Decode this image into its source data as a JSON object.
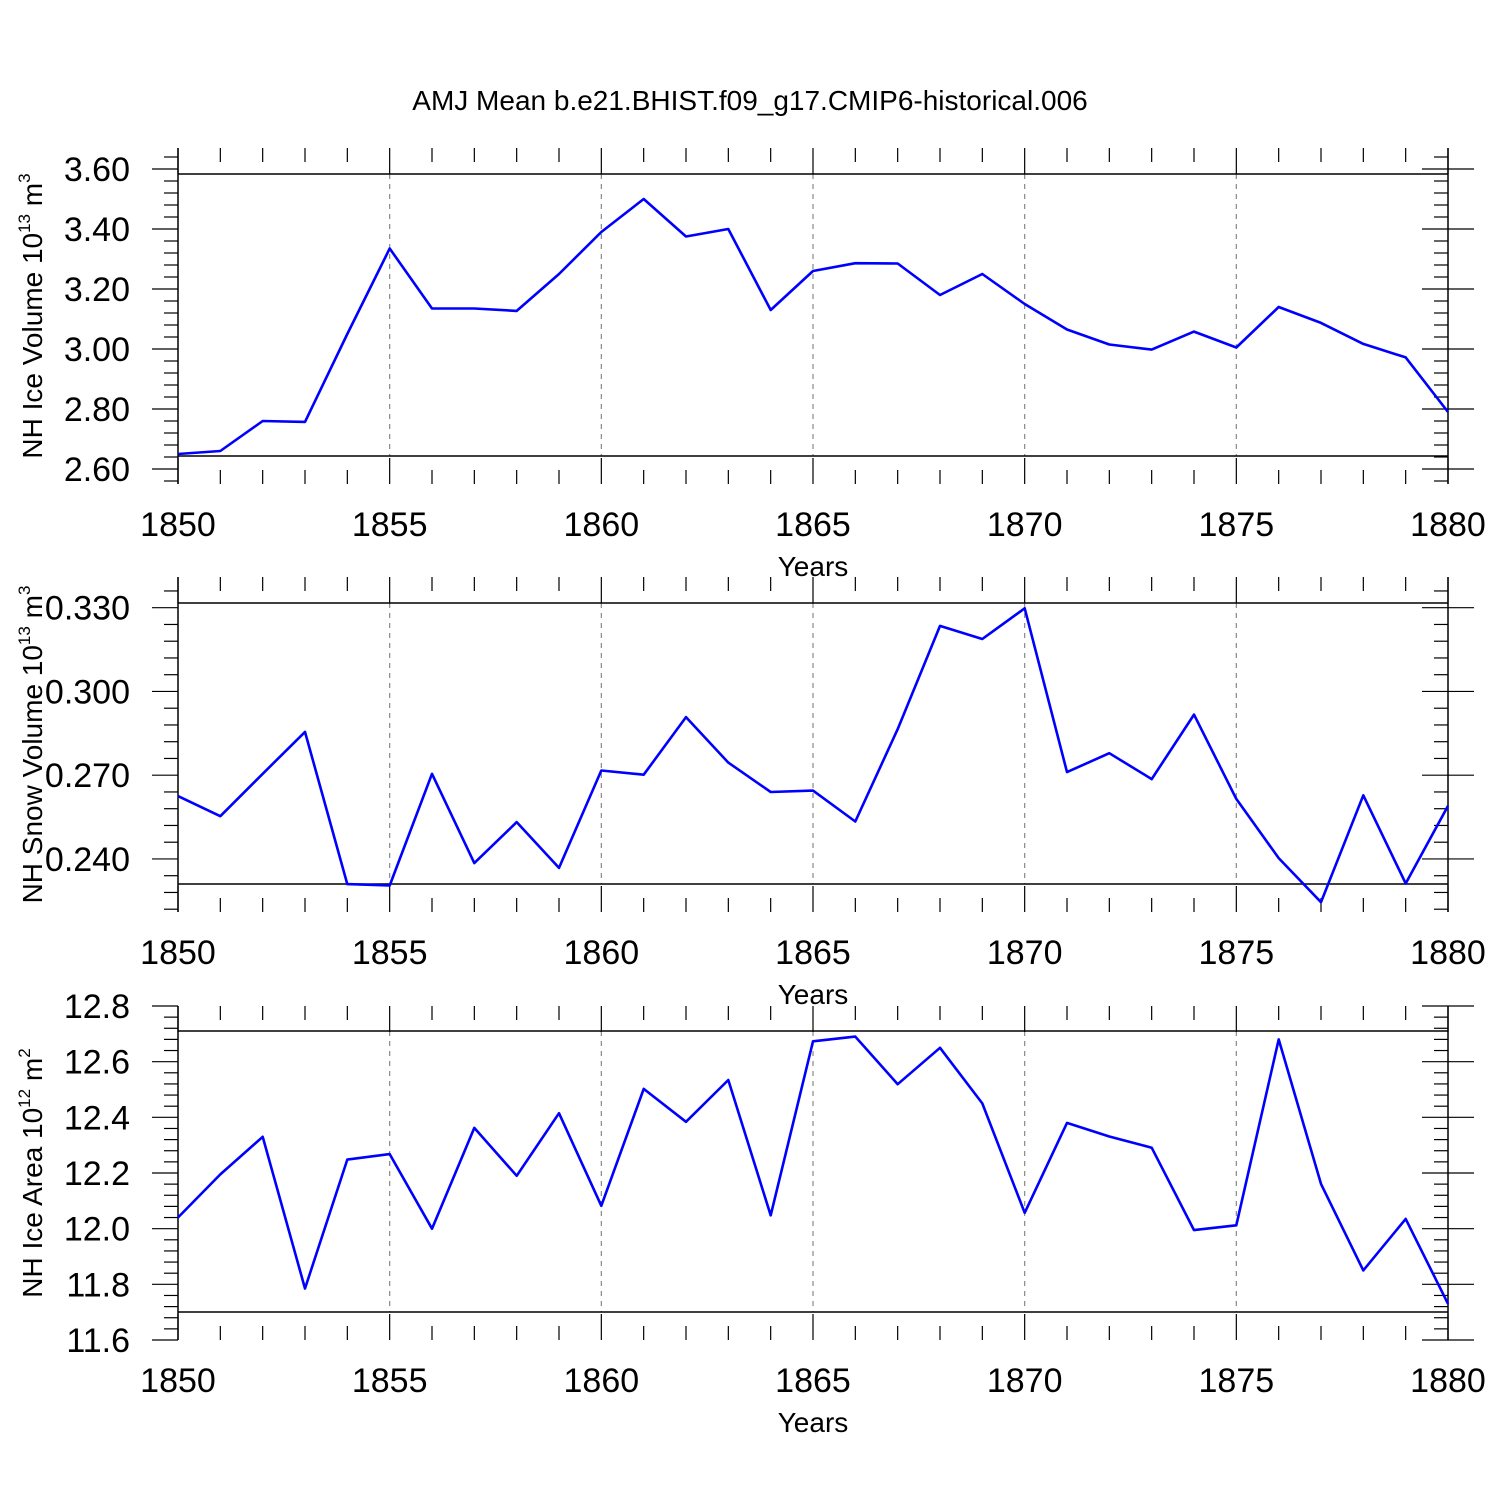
{
  "figure_title": "AMJ Mean b.e21.BHIST.f09_g17.CMIP6-historical.006",
  "colors": {
    "line": "#0000ff",
    "frame": "#000000",
    "grid": "#888888"
  },
  "chart_data": [
    {
      "type": "line",
      "title": "AMJ Mean b.e21.BHIST.f09_g17.CMIP6-historical.006",
      "xlabel": "Years",
      "ylabel": {
        "main": "NH Ice Volume 10",
        "exp": "13",
        "unit": " m",
        "unit_exp": "3"
      },
      "xlim": [
        1850,
        1880
      ],
      "ylim": [
        2.55,
        3.67
      ],
      "xticks": [
        "1850",
        "1855",
        "1860",
        "1865",
        "1870",
        "1875",
        "1880"
      ],
      "yticks": [
        "2.60",
        "2.80",
        "3.00",
        "3.20",
        "3.40",
        "3.60"
      ],
      "series": [
        {
          "name": "NH Ice Volume",
          "x": [
            1850,
            1851,
            1852,
            1853,
            1854,
            1855,
            1856,
            1857,
            1858,
            1859,
            1860,
            1861,
            1862,
            1863,
            1864,
            1865,
            1866,
            1867,
            1868,
            1869,
            1870,
            1871,
            1872,
            1873,
            1874,
            1875,
            1876,
            1877,
            1878,
            1879,
            1880
          ],
          "values": [
            2.65,
            2.66,
            2.76,
            2.757,
            3.05,
            3.335,
            3.135,
            3.135,
            3.127,
            3.25,
            3.39,
            3.5,
            3.375,
            3.4,
            3.13,
            3.26,
            3.286,
            3.285,
            3.18,
            3.25,
            3.15,
            3.065,
            3.015,
            2.998,
            3.058,
            3.005,
            3.14,
            3.087,
            3.017,
            2.972,
            2.79
          ]
        }
      ]
    },
    {
      "type": "line",
      "title": "",
      "xlabel": "Years",
      "ylabel": {
        "main": "NH Snow Volume 10",
        "exp": "13",
        "unit": " m",
        "unit_exp": "3"
      },
      "xlim": [
        1850,
        1880
      ],
      "ylim": [
        0.221,
        0.341
      ],
      "xticks": [
        "1850",
        "1855",
        "1860",
        "1865",
        "1870",
        "1875",
        "1880"
      ],
      "yticks": [
        "0.240",
        "0.270",
        "0.300",
        "0.330"
      ],
      "series": [
        {
          "name": "NH Snow Volume",
          "x": [
            1850,
            1851,
            1852,
            1853,
            1854,
            1855,
            1856,
            1857,
            1858,
            1859,
            1860,
            1861,
            1862,
            1863,
            1864,
            1865,
            1866,
            1867,
            1868,
            1869,
            1870,
            1871,
            1872,
            1873,
            1874,
            1875,
            1876,
            1877,
            1878,
            1879,
            1880
          ],
          "values": [
            0.2625,
            0.2553,
            0.2705,
            0.2855,
            0.231,
            0.2305,
            0.2705,
            0.2385,
            0.2532,
            0.2368,
            0.2717,
            0.2702,
            0.2908,
            0.2745,
            0.264,
            0.2645,
            0.2534,
            0.2865,
            0.3235,
            0.3188,
            0.3298,
            0.2711,
            0.2779,
            0.2686,
            0.2917,
            0.2615,
            0.2403,
            0.2245,
            0.2628,
            0.2312,
            0.259
          ]
        }
      ]
    },
    {
      "type": "line",
      "title": "",
      "xlabel": "Years",
      "ylabel": {
        "main": "NH Ice Area 10",
        "exp": "12",
        "unit": " m",
        "unit_exp": "2"
      },
      "xlim": [
        1850,
        1880
      ],
      "ylim": [
        11.6,
        12.8
      ],
      "xticks": [
        "1850",
        "1855",
        "1860",
        "1865",
        "1870",
        "1875",
        "1880"
      ],
      "yticks": [
        "11.6",
        "11.8",
        "12.0",
        "12.2",
        "12.4",
        "12.6",
        "12.8"
      ],
      "series": [
        {
          "name": "NH Ice Area",
          "x": [
            1850,
            1851,
            1852,
            1853,
            1854,
            1855,
            1856,
            1857,
            1858,
            1859,
            1860,
            1861,
            1862,
            1863,
            1864,
            1865,
            1866,
            1867,
            1868,
            1869,
            1870,
            1871,
            1872,
            1873,
            1874,
            1875,
            1876,
            1877,
            1878,
            1879,
            1880
          ],
          "values": [
            12.04,
            12.195,
            12.33,
            11.785,
            12.248,
            12.268,
            12.0,
            12.362,
            12.19,
            12.415,
            12.082,
            12.502,
            12.384,
            12.534,
            12.048,
            12.673,
            12.69,
            12.519,
            12.65,
            12.45,
            12.057,
            12.38,
            12.331,
            12.291,
            11.995,
            12.012,
            12.68,
            12.161,
            11.85,
            12.035,
            11.73
          ]
        }
      ]
    }
  ]
}
